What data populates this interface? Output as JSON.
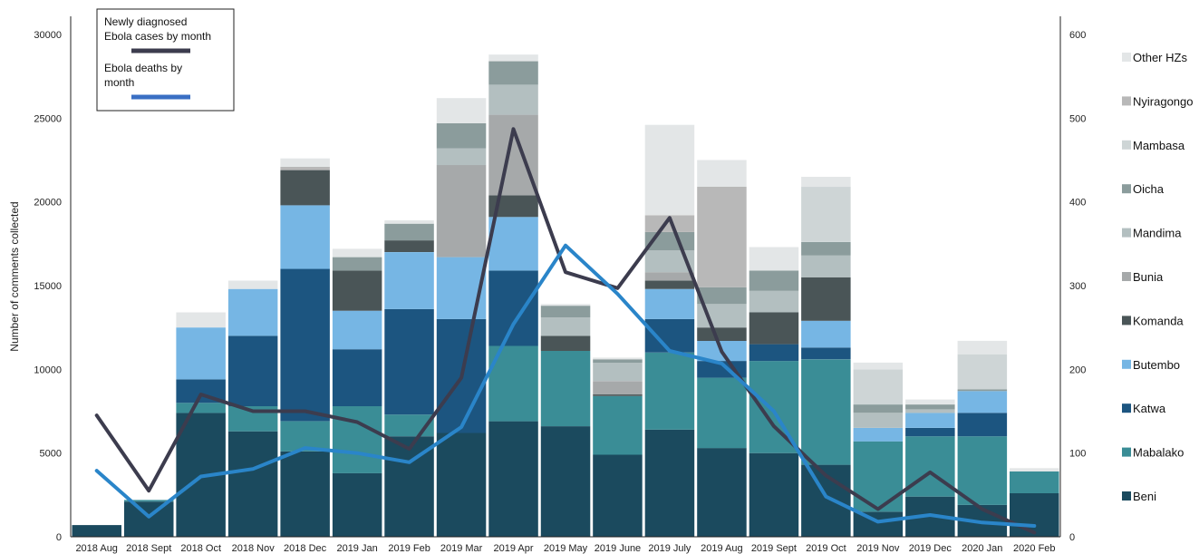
{
  "chart_data": {
    "type": "bar",
    "subtype": "stacked bar with line overlay",
    "categories": [
      "2018 Aug",
      "2018 Sept",
      "2018 Oct",
      "2018 Nov",
      "2018 Dec",
      "2019 Jan",
      "2019 Feb",
      "2019 Mar",
      "2019 Apr",
      "2019 May",
      "2019 June",
      "2019 July",
      "2019 Aug",
      "2019 Sept",
      "2019 Oct",
      "2019 Nov",
      "2019 Dec",
      "2020 Jan",
      "2020 Feb"
    ],
    "ylabel": "Number of comments collected",
    "ylim": [
      0,
      30000
    ],
    "y_ticks": [
      "0",
      "5000",
      "10000",
      "15000",
      "20000",
      "25000",
      "30000"
    ],
    "y2lim": [
      0,
      600
    ],
    "y2_ticks": [
      "0",
      "100",
      "200",
      "300",
      "400",
      "500",
      "600"
    ],
    "grid": false,
    "legend_position": "right",
    "series": [
      {
        "name": "Beni",
        "color": "#1b4a5e",
        "values": [
          700,
          2100,
          7400,
          6300,
          5100,
          3800,
          6000,
          6200,
          6900,
          6600,
          4900,
          6400,
          5300,
          5000,
          4300,
          1500,
          2400,
          1900,
          2600
        ]
      },
      {
        "name": "Mabalako",
        "color": "#3a8d96",
        "values": [
          0,
          100,
          600,
          1500,
          1800,
          4000,
          1300,
          0,
          4500,
          4500,
          3500,
          4600,
          4200,
          5500,
          6300,
          4200,
          3600,
          4100,
          1300
        ]
      },
      {
        "name": "Katwa",
        "color": "#1c5580",
        "values": [
          0,
          0,
          1400,
          4200,
          9100,
          3400,
          6300,
          6800,
          4500,
          0,
          0,
          2000,
          1000,
          1000,
          700,
          0,
          500,
          1400,
          0
        ]
      },
      {
        "name": "Butembo",
        "color": "#76b6e4",
        "values": [
          0,
          0,
          3100,
          2800,
          3800,
          2300,
          3400,
          3700,
          3200,
          0,
          0,
          1800,
          1200,
          0,
          1600,
          800,
          900,
          1300,
          0
        ]
      },
      {
        "name": "Komanda",
        "color": "#4a5557",
        "values": [
          0,
          0,
          0,
          0,
          2100,
          2400,
          700,
          0,
          1300,
          900,
          100,
          500,
          800,
          1900,
          2600,
          0,
          0,
          0,
          0
        ]
      },
      {
        "name": "Bunia",
        "color": "#a6a9aa",
        "values": [
          0,
          0,
          0,
          0,
          0,
          0,
          0,
          5500,
          4800,
          0,
          800,
          500,
          0,
          0,
          0,
          0,
          0,
          0,
          0
        ]
      },
      {
        "name": "Mandima",
        "color": "#b3bfc0",
        "values": [
          0,
          0,
          0,
          0,
          0,
          0,
          0,
          1000,
          1800,
          1100,
          1100,
          1300,
          1400,
          1300,
          1300,
          900,
          200,
          0,
          0
        ]
      },
      {
        "name": "Oicha",
        "color": "#8b9c9c",
        "values": [
          0,
          0,
          0,
          0,
          0,
          800,
          1000,
          1500,
          1400,
          700,
          200,
          1100,
          1000,
          1200,
          800,
          500,
          300,
          100,
          0
        ]
      },
      {
        "name": "Mambasa",
        "color": "#ced5d6",
        "values": [
          0,
          0,
          0,
          0,
          0,
          0,
          0,
          0,
          0,
          0,
          0,
          0,
          0,
          0,
          3300,
          2100,
          0,
          2100,
          0
        ]
      },
      {
        "name": "Nyiragongo",
        "color": "#b8b8b8",
        "values": [
          0,
          0,
          0,
          0,
          200,
          0,
          0,
          0,
          0,
          0,
          0,
          1000,
          6000,
          0,
          0,
          0,
          0,
          0,
          0
        ]
      },
      {
        "name": "Other HZs",
        "color": "#e3e6e7",
        "values": [
          0,
          0,
          900,
          500,
          500,
          500,
          200,
          1500,
          400,
          100,
          100,
          5400,
          1600,
          1400,
          600,
          400,
          300,
          800,
          200
        ]
      }
    ],
    "lines": [
      {
        "name": "Newly diagnosed Ebola cases by month",
        "axis": "right",
        "color": "#3c3c4e",
        "values": [
          145,
          55,
          170,
          150,
          150,
          137,
          105,
          190,
          487,
          316,
          297,
          381,
          221,
          132,
          73,
          33,
          77,
          33,
          5
        ]
      },
      {
        "name": "Ebola deaths by month",
        "axis": "right",
        "color": "#2a85c9",
        "values": [
          79,
          24,
          72,
          81,
          106,
          100,
          89,
          131,
          254,
          348,
          290,
          222,
          207,
          150,
          48,
          18,
          26,
          17,
          13
        ]
      }
    ],
    "inset_legend": [
      {
        "label_lines": [
          "Newly diagnosed",
          "Ebola cases by month"
        ],
        "color": "#3c3c4e"
      },
      {
        "label_lines": [
          "Ebola deaths by",
          "month"
        ],
        "color": "#3a6fc4"
      }
    ]
  }
}
